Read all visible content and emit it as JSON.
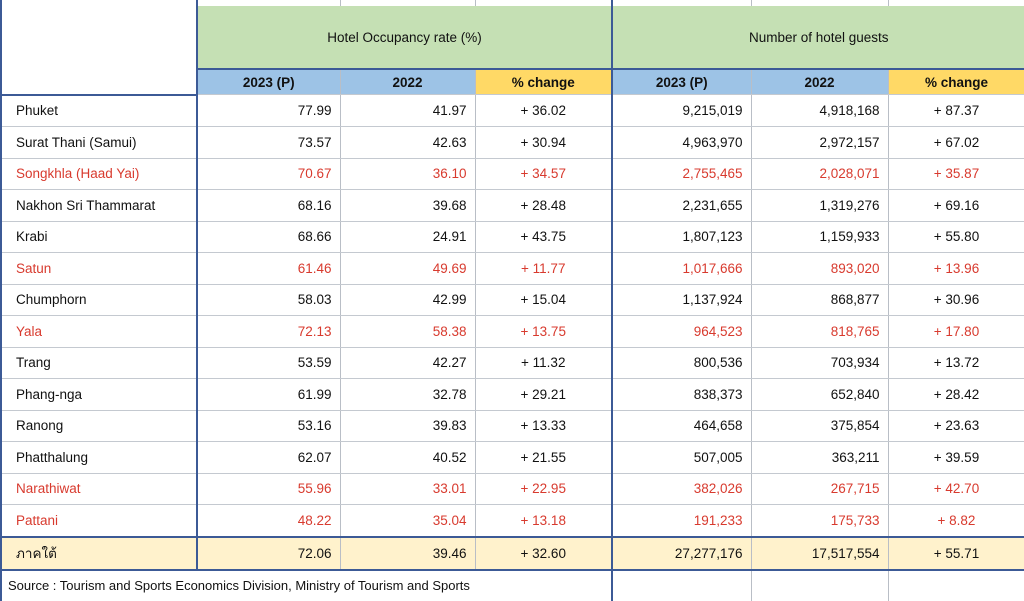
{
  "table": {
    "group_headers": {
      "occupancy": "Hotel Occupancy rate (%)",
      "guests": "Number of hotel guests"
    },
    "sub_headers": [
      "2023 (P)",
      "2022",
      "% change",
      "2023 (P)",
      "2022",
      "% change"
    ],
    "rows": [
      {
        "name": "Phuket",
        "occ_2023": "77.99",
        "occ_2022": "41.97",
        "occ_chg": "+ 36.02",
        "g_2023": "9,215,019",
        "g_2022": "4,918,168",
        "g_chg": "+ 87.37",
        "highlight": false
      },
      {
        "name": "Surat Thani (Samui)",
        "occ_2023": "73.57",
        "occ_2022": "42.63",
        "occ_chg": "+ 30.94",
        "g_2023": "4,963,970",
        "g_2022": "2,972,157",
        "g_chg": "+ 67.02",
        "highlight": false
      },
      {
        "name": "Songkhla (Haad Yai)",
        "occ_2023": "70.67",
        "occ_2022": "36.10",
        "occ_chg": "+ 34.57",
        "g_2023": "2,755,465",
        "g_2022": "2,028,071",
        "g_chg": "+ 35.87",
        "highlight": true
      },
      {
        "name": "Nakhon Sri Thammarat",
        "occ_2023": "68.16",
        "occ_2022": "39.68",
        "occ_chg": "+ 28.48",
        "g_2023": "2,231,655",
        "g_2022": "1,319,276",
        "g_chg": "+ 69.16",
        "highlight": false
      },
      {
        "name": "Krabi",
        "occ_2023": "68.66",
        "occ_2022": "24.91",
        "occ_chg": "+ 43.75",
        "g_2023": "1,807,123",
        "g_2022": "1,159,933",
        "g_chg": "+ 55.80",
        "highlight": false
      },
      {
        "name": "Satun",
        "occ_2023": "61.46",
        "occ_2022": "49.69",
        "occ_chg": "+ 11.77",
        "g_2023": "1,017,666",
        "g_2022": "893,020",
        "g_chg": "+ 13.96",
        "highlight": true
      },
      {
        "name": "Chumphorn",
        "occ_2023": "58.03",
        "occ_2022": "42.99",
        "occ_chg": "+ 15.04",
        "g_2023": "1,137,924",
        "g_2022": "868,877",
        "g_chg": "+ 30.96",
        "highlight": false
      },
      {
        "name": "Yala",
        "occ_2023": "72.13",
        "occ_2022": "58.38",
        "occ_chg": "+ 13.75",
        "g_2023": "964,523",
        "g_2022": "818,765",
        "g_chg": "+ 17.80",
        "highlight": true
      },
      {
        "name": "Trang",
        "occ_2023": "53.59",
        "occ_2022": "42.27",
        "occ_chg": "+ 11.32",
        "g_2023": "800,536",
        "g_2022": "703,934",
        "g_chg": "+ 13.72",
        "highlight": false
      },
      {
        "name": "Phang-nga",
        "occ_2023": "61.99",
        "occ_2022": "32.78",
        "occ_chg": "+ 29.21",
        "g_2023": "838,373",
        "g_2022": "652,840",
        "g_chg": "+ 28.42",
        "highlight": false
      },
      {
        "name": "Ranong",
        "occ_2023": "53.16",
        "occ_2022": "39.83",
        "occ_chg": "+ 13.33",
        "g_2023": "464,658",
        "g_2022": "375,854",
        "g_chg": "+ 23.63",
        "highlight": false
      },
      {
        "name": "Phatthalung",
        "occ_2023": "62.07",
        "occ_2022": "40.52",
        "occ_chg": "+ 21.55",
        "g_2023": "507,005",
        "g_2022": "363,211",
        "g_chg": "+ 39.59",
        "highlight": false
      },
      {
        "name": "Narathiwat",
        "occ_2023": "55.96",
        "occ_2022": "33.01",
        "occ_chg": "+ 22.95",
        "g_2023": "382,026",
        "g_2022": "267,715",
        "g_chg": "+ 42.70",
        "highlight": true
      },
      {
        "name": "Pattani",
        "occ_2023": "48.22",
        "occ_2022": "35.04",
        "occ_chg": "+ 13.18",
        "g_2023": "191,233",
        "g_2022": "175,733",
        "g_chg": "+ 8.82",
        "highlight": true
      }
    ],
    "total": {
      "name": "ภาคใต้",
      "occ_2023": "72.06",
      "occ_2022": "39.46",
      "occ_chg": "+ 32.60",
      "g_2023": "27,277,176",
      "g_2022": "17,517,554",
      "g_chg": "+ 55.71"
    },
    "source": "Source : Tourism and Sports Economics Division, Ministry of Tourism and Sports"
  },
  "colors": {
    "group_header_bg": "#c5e0b4",
    "subheader_blue": "#9dc3e6",
    "subheader_yellow": "#ffd966",
    "total_bg": "#fff2cc",
    "highlight_text": "#d83a2e",
    "border_accent": "#3c5a96"
  }
}
